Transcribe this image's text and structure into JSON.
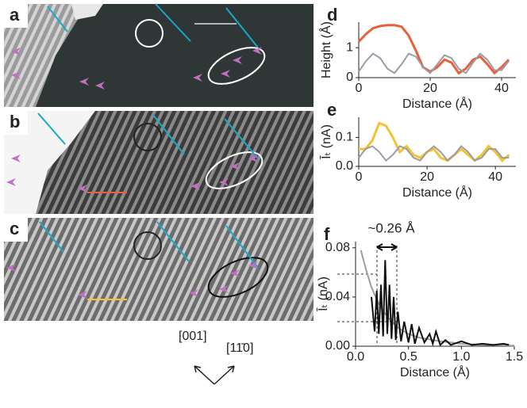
{
  "images": [
    {
      "label": "a"
    },
    {
      "label": "b"
    },
    {
      "label": "c"
    }
  ],
  "directions": [
    "[001]",
    "[11̄0]"
  ],
  "chart_data": [
    {
      "type": "line",
      "panel": "d",
      "xlabel": "Distance (Å)",
      "ylabel": "Height (Å)",
      "xlim": [
        0,
        44
      ],
      "xticks": [
        0,
        20,
        40
      ],
      "ylim": [
        0,
        1.85
      ],
      "yticks": [
        0,
        1
      ],
      "x": [
        0,
        2,
        4,
        6,
        8,
        10,
        12,
        14,
        16,
        18,
        20,
        22,
        24,
        26,
        28,
        30,
        32,
        34,
        36,
        38,
        40,
        42
      ],
      "series": [
        {
          "color": "#e8603c",
          "values": [
            1.2,
            1.45,
            1.65,
            1.72,
            1.75,
            1.75,
            1.7,
            1.4,
            0.9,
            0.35,
            0.2,
            0.35,
            0.6,
            0.5,
            0.15,
            0.3,
            0.6,
            0.7,
            0.45,
            0.15,
            0.35,
            0.6
          ]
        },
        {
          "color": "#9a9ca8",
          "values": [
            0.2,
            0.55,
            0.8,
            0.65,
            0.3,
            0.15,
            0.45,
            0.8,
            0.7,
            0.35,
            0.15,
            0.45,
            0.75,
            0.65,
            0.3,
            0.15,
            0.5,
            0.8,
            0.6,
            0.25,
            0.25,
            0.55
          ]
        }
      ]
    },
    {
      "type": "line",
      "panel": "e",
      "xlabel": "Distance (Å)",
      "ylabel": "Īₜ (nA)",
      "xlim": [
        0,
        46
      ],
      "xticks": [
        0,
        20,
        40
      ],
      "ylim": [
        0,
        0.17
      ],
      "yticks": [
        {
          "value": 0,
          "label": "0.0"
        },
        0.1
      ],
      "x": [
        0,
        2,
        4,
        6,
        8,
        10,
        12,
        14,
        16,
        18,
        20,
        22,
        24,
        26,
        28,
        30,
        32,
        34,
        36,
        38,
        40,
        42,
        44
      ],
      "series": [
        {
          "color": "#f2c230",
          "values": [
            0.06,
            0.06,
            0.09,
            0.15,
            0.14,
            0.1,
            0.05,
            0.07,
            0.04,
            0.03,
            0.05,
            0.06,
            0.03,
            0.02,
            0.04,
            0.06,
            0.04,
            0.02,
            0.04,
            0.07,
            0.05,
            0.02,
            0.04
          ]
        },
        {
          "color": "#9a9ca8",
          "values": [
            0.03,
            0.06,
            0.07,
            0.05,
            0.02,
            0.04,
            0.07,
            0.06,
            0.03,
            0.02,
            0.05,
            0.07,
            0.05,
            0.02,
            0.04,
            0.07,
            0.05,
            0.02,
            0.03,
            0.06,
            0.06,
            0.03,
            0.03
          ]
        }
      ]
    },
    {
      "type": "line",
      "panel": "f",
      "xlabel": "Distance (Å)",
      "ylabel": "Īₜ (nA)",
      "annotation": "~0.26 Å",
      "xlim": [
        0,
        1.5
      ],
      "xticks": [
        {
          "value": 0,
          "label": "0.0"
        },
        0.5,
        {
          "value": 1,
          "label": "1.0"
        },
        1.5
      ],
      "ylim": [
        0,
        0.085
      ],
      "yticks": [
        {
          "value": 0,
          "label": "0.00"
        },
        0.04,
        0.08
      ],
      "series": [
        {
          "color": "#9a9ca8",
          "x": [
            0.05,
            0.1,
            0.15,
            0.2,
            0.25,
            0.3,
            0.4,
            0.5,
            0.6,
            0.8,
            1.0,
            1.2,
            1.5
          ],
          "values": [
            0.078,
            0.062,
            0.048,
            0.038,
            0.03,
            0.024,
            0.015,
            0.01,
            0.007,
            0.004,
            0.002,
            0.001,
            0.0005
          ]
        },
        {
          "color": "#111111",
          "x": [
            0.15,
            0.18,
            0.2,
            0.22,
            0.24,
            0.26,
            0.28,
            0.3,
            0.32,
            0.34,
            0.36,
            0.38,
            0.4,
            0.43,
            0.46,
            0.5,
            0.53,
            0.56,
            0.6,
            0.65,
            0.7,
            0.73,
            0.76,
            0.8,
            0.85,
            0.9,
            1.0,
            1.1,
            1.2,
            1.3,
            1.4,
            1.45
          ],
          "values": [
            0.04,
            0.012,
            0.045,
            0.01,
            0.05,
            0.008,
            0.07,
            0.01,
            0.05,
            0.006,
            0.04,
            0.005,
            0.028,
            0.004,
            0.02,
            0.003,
            0.018,
            0.002,
            0.015,
            0.003,
            0.01,
            0.002,
            0.012,
            0.001,
            0.005,
            0.001,
            0.004,
            0.001,
            0.002,
            0.001,
            0.002,
            0.001
          ]
        }
      ]
    }
  ]
}
